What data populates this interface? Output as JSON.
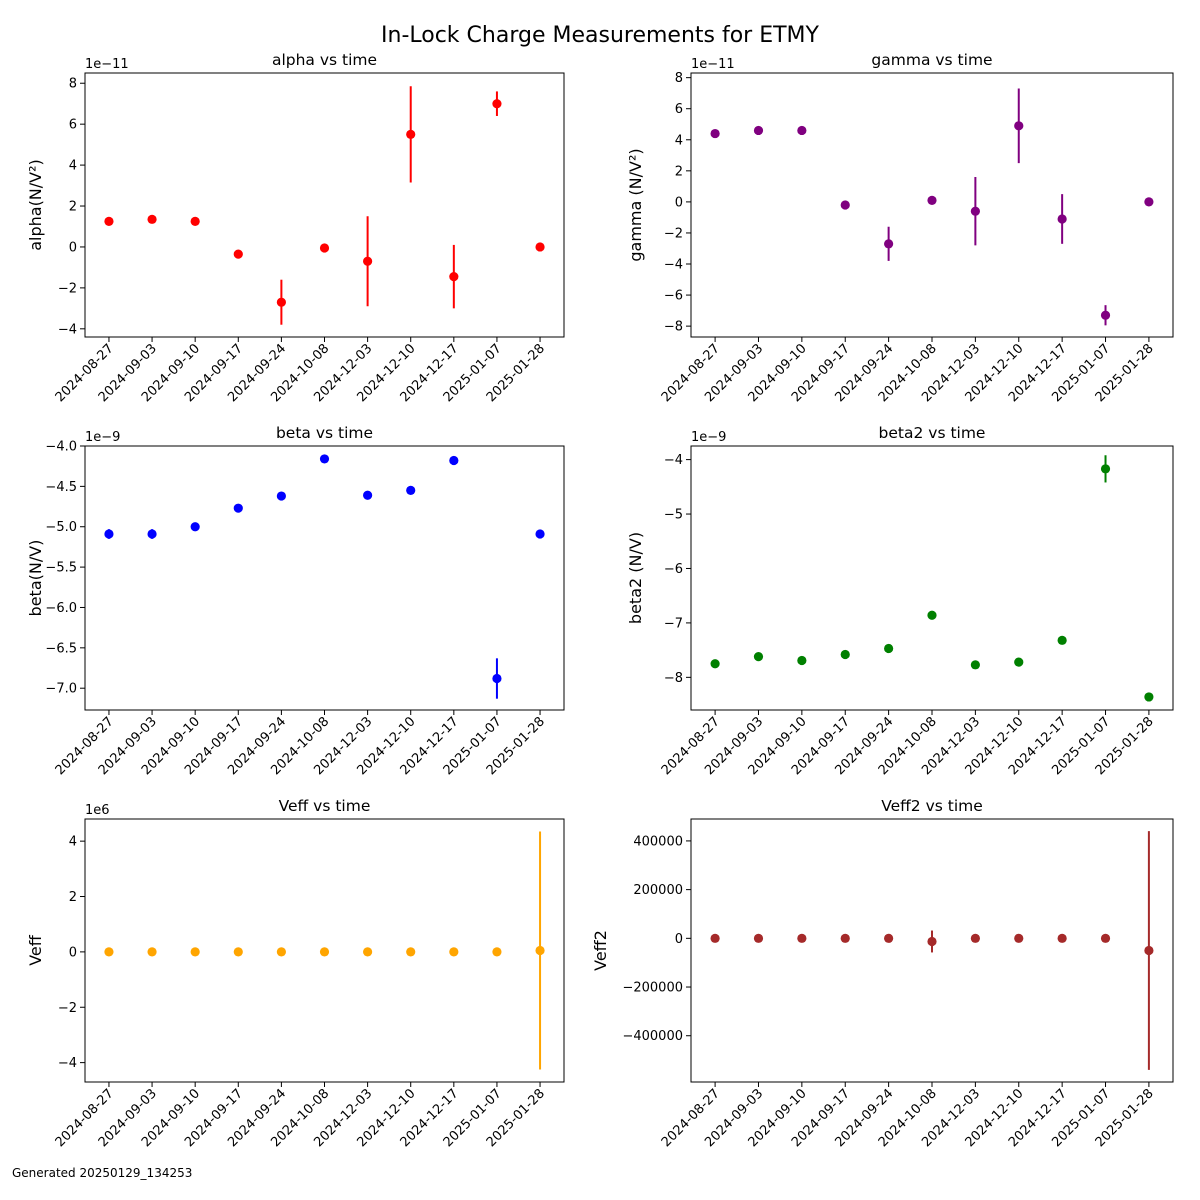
{
  "figure": {
    "title": "In-Lock Charge Measurements for ETMY",
    "footer": "Generated 20250129_134253"
  },
  "chart_data": [
    {
      "type": "scatter",
      "title": "alpha vs time",
      "xlabel": "",
      "ylabel": "alpha(N/V²)",
      "offset_label": "1e−11",
      "color": "#ff0000",
      "categories": [
        "2024-08-27",
        "2024-09-03",
        "2024-09-10",
        "2024-09-17",
        "2024-09-24",
        "2024-10-08",
        "2024-12-03",
        "2024-12-10",
        "2024-12-17",
        "2025-01-07",
        "2025-01-28"
      ],
      "values": [
        1.25,
        1.35,
        1.25,
        -0.35,
        -2.7,
        -0.05,
        -0.7,
        5.5,
        -1.45,
        7.0,
        0.0
      ],
      "errors": [
        0.0,
        0.0,
        0.0,
        0.1,
        1.1,
        0.0,
        2.2,
        2.35,
        1.55,
        0.6,
        0.0
      ],
      "ylim": [
        -4.4,
        8.5
      ],
      "yticks": [
        -4,
        -2,
        0,
        2,
        4,
        6,
        8
      ],
      "ytick_labels": [
        "−4",
        "−2",
        "0",
        "2",
        "4",
        "6",
        "8"
      ]
    },
    {
      "type": "scatter",
      "title": "gamma vs time",
      "xlabel": "",
      "ylabel": "gamma (N/V²)",
      "offset_label": "1e−11",
      "color": "#800080",
      "categories": [
        "2024-08-27",
        "2024-09-03",
        "2024-09-10",
        "2024-09-17",
        "2024-09-24",
        "2024-10-08",
        "2024-12-03",
        "2024-12-10",
        "2024-12-17",
        "2025-01-07",
        "2025-01-28"
      ],
      "values": [
        4.4,
        4.6,
        4.6,
        -0.2,
        -2.7,
        0.1,
        -0.6,
        4.9,
        -1.1,
        -7.3,
        0.0
      ],
      "errors": [
        0.0,
        0.0,
        0.0,
        0.0,
        1.1,
        0.0,
        2.2,
        2.4,
        1.6,
        0.65,
        0.0
      ],
      "ylim": [
        -8.7,
        8.3
      ],
      "yticks": [
        -8,
        -6,
        -4,
        -2,
        0,
        2,
        4,
        6,
        8
      ],
      "ytick_labels": [
        "−8",
        "−6",
        "−4",
        "−2",
        "0",
        "2",
        "4",
        "6",
        "8"
      ]
    },
    {
      "type": "scatter",
      "title": "beta vs time",
      "xlabel": "",
      "ylabel": "beta(N/V)",
      "offset_label": "1e−9",
      "color": "#0000ff",
      "categories": [
        "2024-08-27",
        "2024-09-03",
        "2024-09-10",
        "2024-09-17",
        "2024-09-24",
        "2024-10-08",
        "2024-12-03",
        "2024-12-10",
        "2024-12-17",
        "2025-01-07",
        "2025-01-28"
      ],
      "values": [
        -5.09,
        -5.09,
        -5.0,
        -4.77,
        -4.62,
        -4.16,
        -4.61,
        -4.55,
        -4.18,
        -6.88,
        -5.09
      ],
      "errors": [
        0.06,
        0.06,
        0.0,
        0.0,
        0.0,
        0.0,
        0.0,
        0.0,
        0.0,
        0.25,
        0.0
      ],
      "ylim": [
        -7.27,
        -4.0
      ],
      "yticks": [
        -7.0,
        -6.5,
        -6.0,
        -5.5,
        -5.0,
        -4.5,
        -4.0
      ],
      "ytick_labels": [
        "−7.0",
        "−6.5",
        "−6.0",
        "−5.5",
        "−5.0",
        "−4.5",
        "−4.0"
      ]
    },
    {
      "type": "scatter",
      "title": "beta2 vs time",
      "xlabel": "",
      "ylabel": "beta2 (N/V)",
      "offset_label": "1e−9",
      "color": "#008000",
      "categories": [
        "2024-08-27",
        "2024-09-03",
        "2024-09-10",
        "2024-09-17",
        "2024-09-24",
        "2024-10-08",
        "2024-12-03",
        "2024-12-10",
        "2024-12-17",
        "2025-01-07",
        "2025-01-28"
      ],
      "values": [
        -7.75,
        -7.62,
        -7.69,
        -7.58,
        -7.47,
        -6.86,
        -7.77,
        -7.72,
        -7.32,
        -4.17,
        -8.36
      ],
      "errors": [
        0.0,
        0.0,
        0.0,
        0.0,
        0.0,
        0.0,
        0.0,
        0.0,
        0.0,
        0.25,
        0.0
      ],
      "ylim": [
        -8.6,
        -3.75
      ],
      "yticks": [
        -8,
        -7,
        -6,
        -5,
        -4
      ],
      "ytick_labels": [
        "−8",
        "−7",
        "−6",
        "−5",
        "−4"
      ]
    },
    {
      "type": "scatter",
      "title": "Veff vs time",
      "xlabel": "",
      "ylabel": "Veff",
      "offset_label": "1e6",
      "color": "#ffa500",
      "categories": [
        "2024-08-27",
        "2024-09-03",
        "2024-09-10",
        "2024-09-17",
        "2024-09-24",
        "2024-10-08",
        "2024-12-03",
        "2024-12-10",
        "2024-12-17",
        "2025-01-07",
        "2025-01-28"
      ],
      "values": [
        0.0,
        0.0,
        0.0,
        0.0,
        0.0,
        0.0,
        0.0,
        0.0,
        0.0,
        0.0,
        0.05
      ],
      "errors": [
        0.0,
        0.0,
        0.0,
        0.0,
        0.0,
        0.0,
        0.0,
        0.0,
        0.0,
        0.0,
        4.3
      ],
      "ylim": [
        -4.7,
        4.8
      ],
      "yticks": [
        -4,
        -2,
        0,
        2,
        4
      ],
      "ytick_labels": [
        "−4",
        "−2",
        "0",
        "2",
        "4"
      ]
    },
    {
      "type": "scatter",
      "title": "Veff2 vs time",
      "xlabel": "",
      "ylabel": "Veff2",
      "offset_label": "",
      "color": "#a52a2a",
      "categories": [
        "2024-08-27",
        "2024-09-03",
        "2024-09-10",
        "2024-09-17",
        "2024-09-24",
        "2024-10-08",
        "2024-12-03",
        "2024-12-10",
        "2024-12-17",
        "2025-01-07",
        "2025-01-28"
      ],
      "values": [
        0,
        0,
        0,
        0,
        0,
        -13000,
        0,
        0,
        0,
        0,
        -50000
      ],
      "errors": [
        0,
        0,
        0,
        0,
        0,
        45000,
        0,
        0,
        0,
        0,
        490000
      ],
      "ylim": [
        -590000,
        490000
      ],
      "yticks": [
        -400000,
        -200000,
        0,
        200000,
        400000
      ],
      "ytick_labels": [
        "−400000",
        "−200000",
        "0",
        "200000",
        "400000"
      ]
    }
  ]
}
